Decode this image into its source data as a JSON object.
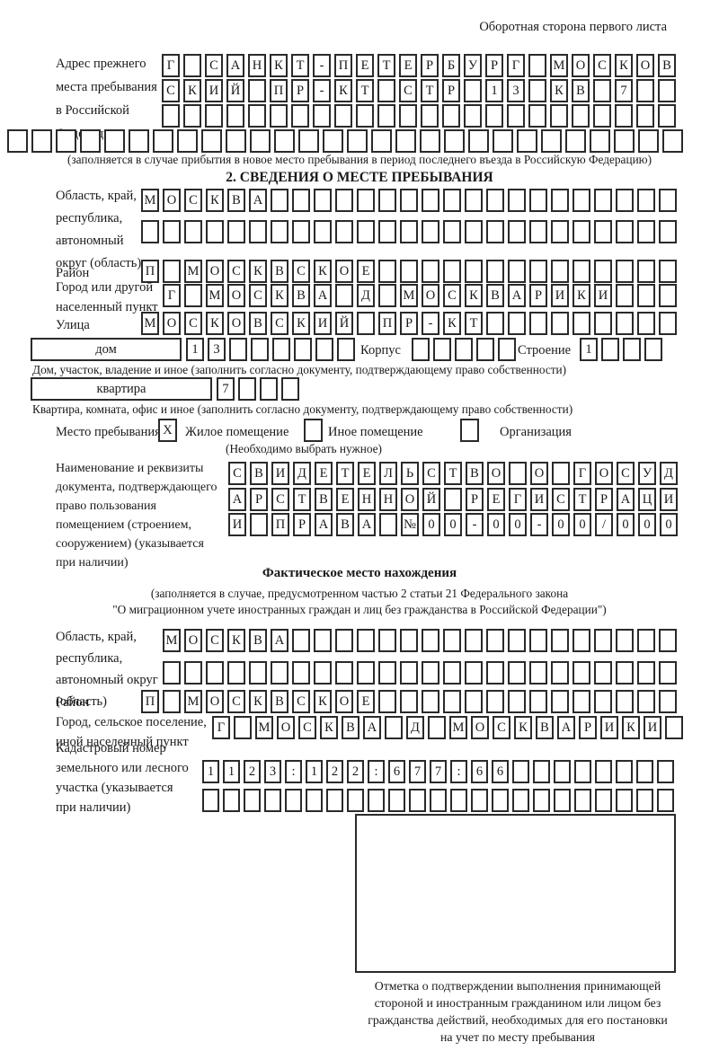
{
  "page": {
    "side_note": "Оборотная сторона первого листа",
    "paper_color": "#ffffff",
    "ink_color": "#1a1a1a"
  },
  "prev_address": {
    "label": "Адрес прежнего\nместа пребывания\nв Российской\nФедерации",
    "line1": {
      "len": 24,
      "text": "Г САНКТ-ПЕТЕРБУРГ МОСКОВ"
    },
    "line2": {
      "len": 24,
      "text": "СКИЙ ПР-КТ СТР 13 КВ 7"
    },
    "line3": {
      "len": 24,
      "text": ""
    },
    "line4": {
      "len": 28,
      "text": ""
    },
    "caption": "(заполняется в случае прибытия в новое место пребывания в период последнего въезда в Российскую Федерацию)"
  },
  "section2": {
    "title": "2. СВЕДЕНИЯ О МЕСТЕ ПРЕБЫВАНИЯ",
    "region": {
      "label": "Область, край,\nреспублика,\nавтономный\nокруг (область)",
      "line1": {
        "len": 25,
        "text": "МОСКВА"
      },
      "line2": {
        "len": 25,
        "text": ""
      }
    },
    "district": {
      "label": "Район",
      "line": {
        "len": 25,
        "text": "П МОСКВСКОЕ"
      }
    },
    "city": {
      "label": "Город или другой\nнаселенный пункт",
      "line": {
        "len": 24,
        "text": "Г МОСКВА Д МОСКВАРИКИ"
      }
    },
    "street": {
      "label": "Улица",
      "line": {
        "len": 25,
        "text": "МОСКОВСКИЙ ПР-КТ"
      }
    },
    "house": {
      "box_label": "дом",
      "line": {
        "len": 8,
        "text": "13"
      },
      "korpus_label": "Корпус",
      "korpus_line": {
        "len": 5,
        "text": ""
      },
      "stroenie_label": "Строение",
      "stroenie_line": {
        "len": 4,
        "text": "1"
      },
      "caption": "Дом, участок, владение и иное (заполнить согласно документу, подтверждающему право собственности)"
    },
    "apartment": {
      "box_label": "квартира",
      "line": {
        "len": 4,
        "text": "7"
      },
      "caption": "Квартира, комната, офис и иное (заполнить согласно документу, подтверждающему право собственности)"
    },
    "stay_type": {
      "label": "Место пребывания:",
      "checked_mark": "X",
      "option1": "Жилое помещение",
      "option2": "Иное помещение",
      "option3": "Организация",
      "hint": "(Необходимо выбрать нужное)"
    },
    "document": {
      "label": "Наименование и реквизиты\nдокумента, подтверждающего\nправо пользования\nпомещением (строением,\nсооружением) (указывается\nпри наличии)",
      "line1": {
        "len": 21,
        "text": "СВИДЕТЕЛЬСТВО О ГОСУД"
      },
      "line2": {
        "len": 21,
        "text": "АРСТВЕННОЙ РЕГИСТРАЦИ"
      },
      "line3": {
        "len": 21,
        "text": "И ПРАВА №00-00-00/000"
      }
    }
  },
  "actual_location": {
    "title": "Фактическое место нахождения",
    "caption_line1": "(заполняется в случае, предусмотренном частью 2 статьи 21 Федерального закона",
    "caption_line2": "\"О миграционном учете иностранных граждан и лиц без гражданства в Российской Федерации\")",
    "region": {
      "label": "Область, край,\nреспублика,\nавтономный округ\n(область)",
      "line1": {
        "len": 24,
        "text": "МОСКВА"
      },
      "line2": {
        "len": 24,
        "text": ""
      }
    },
    "district": {
      "label": "Район",
      "line": {
        "len": 25,
        "text": "П МОСКВСКОЕ"
      }
    },
    "city": {
      "label": "Город, сельское поселение,\nиной населенный пункт",
      "line": {
        "len": 22,
        "text": "Г МОСКВА Д МОСКВАРИКИ"
      }
    },
    "cadastre": {
      "label": "Кадастровый номер\nземельного или лесного\nучастка (указывается\nпри наличии)",
      "line1": {
        "len": 23,
        "text": "1123:122:677:66"
      },
      "line2": {
        "len": 23,
        "text": ""
      }
    },
    "stamp_note": "Отметка о подтверждении выполнения принимающей\nстороной и иностранным гражданином или лицом без\nгражданства действий, необходимых для его постановки\nна учет по месту пребывания"
  }
}
